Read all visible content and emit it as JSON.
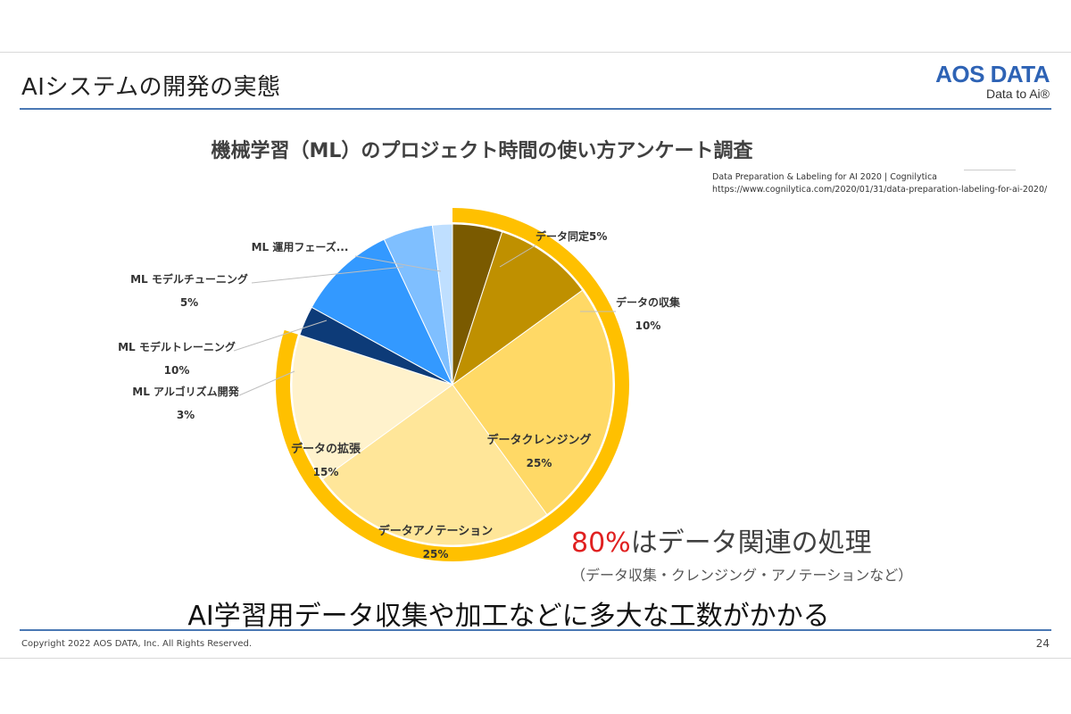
{
  "slide": {
    "title": "AIシステムの開発の実態",
    "logo": {
      "main": "AOS DATA",
      "sub": "Data to Ai®"
    },
    "source_lines": [
      "Data Preparation & Labeling for AI 2020 | Cognilytica",
      "https://www.cognilytica.com/2020/01/31/data-preparation-labeling-for-ai-2020/"
    ],
    "highlight": {
      "pct": "80%",
      "rest": "はデータ関連の処理"
    },
    "sub_note": "（データ収集・クレンジング・アノテーションなど）",
    "conclusion": "AI学習用データ収集や加工などに多大な工数がかかる",
    "copyright": "Copyright 2022 AOS DATA, Inc. All Rights Reserved.",
    "page_number": "24"
  },
  "chart_data": {
    "type": "pie",
    "title": "機械学習（ML）のプロジェクト時間の使い方アンケート調査",
    "slices": [
      {
        "label": "データ同定",
        "value": 5,
        "value_label": "5%",
        "color": "#7a5a00",
        "data_related": true
      },
      {
        "label": "データの収集",
        "value": 10,
        "value_label": "10%",
        "color": "#bf9000",
        "data_related": true
      },
      {
        "label": "データクレンジング",
        "value": 25,
        "value_label": "25%",
        "color": "#ffd966",
        "data_related": true
      },
      {
        "label": "データアノテーション",
        "value": 25,
        "value_label": "25%",
        "color": "#ffe699",
        "data_related": true
      },
      {
        "label": "データの拡張",
        "value": 15,
        "value_label": "15%",
        "color": "#fff2cc",
        "data_related": true
      },
      {
        "label": "ML アルゴリズム開発",
        "value": 3,
        "value_label": "3%",
        "color": "#0d3b78",
        "data_related": false
      },
      {
        "label": "ML モデルトレーニング",
        "value": 10,
        "value_label": "10%",
        "color": "#3399ff",
        "data_related": false
      },
      {
        "label": "ML モデルチューニング",
        "value": 5,
        "value_label": "5%",
        "color": "#7fbfff",
        "data_related": false
      },
      {
        "label": "ML 運用フェーズ...",
        "value": 2,
        "value_label": "",
        "color": "#bfdfff",
        "data_related": false
      }
    ]
  }
}
